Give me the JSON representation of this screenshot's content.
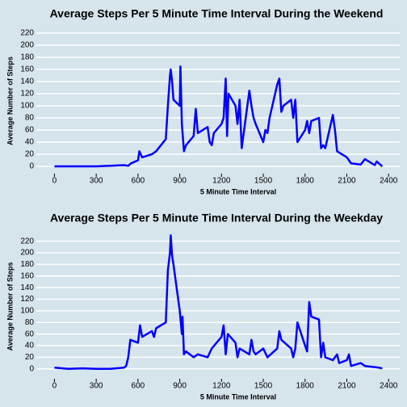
{
  "chart_data": [
    {
      "type": "line",
      "title": "Average Steps Per 5 Minute Time Interval During the Weekend",
      "x_label": "5 Minute Time Interval",
      "y_label": "Average Number of Steps",
      "color": "#0000ff",
      "grid": true,
      "xlim": [
        -130,
        2480
      ],
      "ylim": [
        -12,
        228
      ],
      "xticks": [
        0,
        300,
        600,
        900,
        1200,
        1500,
        1800,
        2100,
        2400
      ],
      "yticks": [
        0,
        20,
        40,
        60,
        80,
        100,
        120,
        140,
        160,
        180,
        200,
        220
      ],
      "x": [
        0,
        100,
        200,
        300,
        400,
        500,
        530,
        550,
        600,
        610,
        630,
        700,
        730,
        800,
        815,
        830,
        835,
        845,
        855,
        900,
        905,
        915,
        930,
        945,
        1000,
        1015,
        1030,
        1100,
        1115,
        1130,
        1145,
        1200,
        1215,
        1230,
        1240,
        1250,
        1300,
        1315,
        1330,
        1345,
        1400,
        1415,
        1430,
        1445,
        1500,
        1515,
        1530,
        1545,
        1600,
        1615,
        1630,
        1645,
        1700,
        1715,
        1730,
        1745,
        1800,
        1815,
        1830,
        1845,
        1900,
        1915,
        1930,
        1945,
        2000,
        2015,
        2030,
        2100,
        2115,
        2130,
        2200,
        2230,
        2300,
        2315,
        2330,
        2355
      ],
      "values": [
        0,
        0,
        0,
        0,
        1,
        2,
        1,
        5,
        10,
        25,
        15,
        20,
        25,
        45,
        100,
        150,
        160,
        140,
        110,
        100,
        165,
        70,
        25,
        35,
        50,
        95,
        55,
        65,
        40,
        35,
        55,
        70,
        80,
        145,
        50,
        120,
        100,
        70,
        110,
        30,
        125,
        100,
        80,
        70,
        40,
        60,
        55,
        80,
        135,
        145,
        90,
        100,
        110,
        80,
        110,
        40,
        60,
        75,
        55,
        75,
        80,
        30,
        35,
        30,
        85,
        60,
        25,
        15,
        10,
        5,
        3,
        12,
        2,
        8,
        5,
        0
      ]
    },
    {
      "type": "line",
      "title": "Average Steps Per 5 Minute Time Interval During the Weekday",
      "x_label": "5 Minute Time Interval",
      "y_label": "Average Number of Steps",
      "color": "#0000ff",
      "grid": true,
      "xlim": [
        -130,
        2480
      ],
      "ylim": [
        -17,
        232
      ],
      "xticks": [
        0,
        300,
        600,
        900,
        1200,
        1500,
        1800,
        2100,
        2400
      ],
      "yticks": [
        0,
        20,
        40,
        60,
        80,
        100,
        120,
        140,
        160,
        180,
        200,
        220
      ],
      "x": [
        0,
        100,
        200,
        300,
        400,
        500,
        515,
        530,
        545,
        600,
        615,
        630,
        700,
        715,
        730,
        800,
        815,
        830,
        835,
        845,
        855,
        900,
        915,
        920,
        930,
        945,
        1000,
        1030,
        1100,
        1130,
        1200,
        1215,
        1230,
        1245,
        1300,
        1315,
        1330,
        1400,
        1415,
        1430,
        1445,
        1500,
        1530,
        1600,
        1615,
        1630,
        1700,
        1715,
        1730,
        1745,
        1800,
        1815,
        1830,
        1845,
        1900,
        1915,
        1930,
        1945,
        2000,
        2030,
        2045,
        2100,
        2115,
        2130,
        2200,
        2230,
        2300,
        2330,
        2355
      ],
      "values": [
        2,
        0,
        1,
        0,
        0,
        2,
        5,
        20,
        50,
        45,
        75,
        55,
        65,
        55,
        70,
        80,
        170,
        200,
        230,
        195,
        180,
        100,
        60,
        90,
        25,
        30,
        20,
        25,
        20,
        35,
        55,
        75,
        25,
        60,
        45,
        20,
        35,
        25,
        50,
        30,
        25,
        35,
        20,
        35,
        65,
        50,
        35,
        20,
        35,
        80,
        40,
        30,
        115,
        90,
        85,
        20,
        45,
        20,
        15,
        25,
        10,
        15,
        25,
        5,
        10,
        5,
        3,
        2,
        1
      ]
    }
  ]
}
